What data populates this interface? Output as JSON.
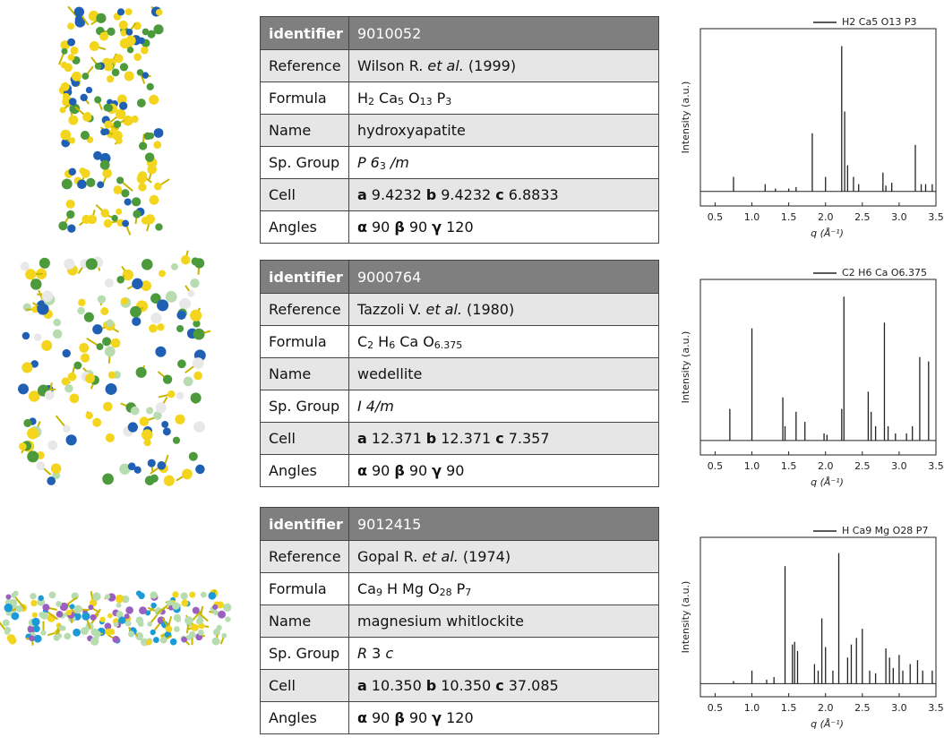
{
  "tables": [
    {
      "header": [
        "identifier",
        "9010052"
      ],
      "rows": [
        {
          "label": "Reference",
          "runs": [
            {
              "text": "Wilson R."
            },
            {
              "text": "et al.",
              "style": "i"
            },
            {
              "text": "(1999)"
            }
          ]
        },
        {
          "label": "Formula",
          "runs": [
            {
              "text": "H"
            },
            {
              "text": "2",
              "style": "sub"
            },
            {
              "text": "Ca"
            },
            {
              "text": "5",
              "style": "sub"
            },
            {
              "text": "O"
            },
            {
              "text": "13",
              "style": "sub"
            },
            {
              "text": "P"
            },
            {
              "text": "3",
              "style": "sub"
            }
          ]
        },
        {
          "label": "Name",
          "runs": [
            {
              "text": "hydroxyapatite"
            }
          ]
        },
        {
          "label": "Sp. Group",
          "runs": [
            {
              "text": "P",
              "style": "i"
            },
            {
              "text": "6",
              "style": "i"
            },
            {
              "text": "3",
              "style": "sub"
            },
            {
              "text": "/m",
              "style": "i"
            }
          ]
        },
        {
          "label": "Cell",
          "runs": [
            {
              "text": "a",
              "style": "b"
            },
            {
              "text": "9.4232"
            },
            {
              "text": "b",
              "style": "b"
            },
            {
              "text": "9.4232"
            },
            {
              "text": "c",
              "style": "b"
            },
            {
              "text": "6.8833"
            }
          ]
        },
        {
          "label": "Angles",
          "runs": [
            {
              "text": "α",
              "style": "b"
            },
            {
              "text": "90"
            },
            {
              "text": "β",
              "style": "b"
            },
            {
              "text": "90"
            },
            {
              "text": "γ",
              "style": "b"
            },
            {
              "text": "120"
            }
          ]
        }
      ]
    },
    {
      "header": [
        "identifier",
        "9000764"
      ],
      "rows": [
        {
          "label": "Reference",
          "runs": [
            {
              "text": "Tazzoli V."
            },
            {
              "text": "et al.",
              "style": "i"
            },
            {
              "text": "(1980)"
            }
          ]
        },
        {
          "label": "Formula",
          "runs": [
            {
              "text": "C"
            },
            {
              "text": "2",
              "style": "sub"
            },
            {
              "text": "H"
            },
            {
              "text": "6",
              "style": "sub"
            },
            {
              "text": "Ca"
            },
            {
              "text": "O"
            },
            {
              "text": "6.375",
              "style": "sub"
            }
          ]
        },
        {
          "label": "Name",
          "runs": [
            {
              "text": "wedellite"
            }
          ]
        },
        {
          "label": "Sp. Group",
          "runs": [
            {
              "text": "I",
              "style": "i"
            },
            {
              "text": "4/m",
              "style": "i"
            }
          ]
        },
        {
          "label": "Cell",
          "runs": [
            {
              "text": "a",
              "style": "b"
            },
            {
              "text": "12.371"
            },
            {
              "text": "b",
              "style": "b"
            },
            {
              "text": "12.371"
            },
            {
              "text": "c",
              "style": "b"
            },
            {
              "text": "7.357"
            }
          ]
        },
        {
          "label": "Angles",
          "runs": [
            {
              "text": "α",
              "style": "b"
            },
            {
              "text": "90"
            },
            {
              "text": "β",
              "style": "b"
            },
            {
              "text": "90"
            },
            {
              "text": "γ",
              "style": "b"
            },
            {
              "text": "90"
            }
          ]
        }
      ]
    },
    {
      "header": [
        "identifier",
        "9012415"
      ],
      "rows": [
        {
          "label": "Reference",
          "runs": [
            {
              "text": "Gopal R."
            },
            {
              "text": "et al.",
              "style": "i"
            },
            {
              "text": "(1974)"
            }
          ]
        },
        {
          "label": "Formula",
          "runs": [
            {
              "text": "Ca"
            },
            {
              "text": "9",
              "style": "sub"
            },
            {
              "text": "H"
            },
            {
              "text": "Mg"
            },
            {
              "text": "O"
            },
            {
              "text": "28",
              "style": "sub"
            },
            {
              "text": "P"
            },
            {
              "text": "7",
              "style": "sub"
            }
          ]
        },
        {
          "label": "Name",
          "runs": [
            {
              "text": "magnesium whitlockite"
            }
          ]
        },
        {
          "label": "Sp. Group",
          "runs": [
            {
              "text": "R",
              "style": "i"
            },
            {
              "text": "3"
            },
            {
              "text": "c",
              "style": "i"
            }
          ]
        },
        {
          "label": "Cell",
          "runs": [
            {
              "text": "a",
              "style": "b"
            },
            {
              "text": "10.350"
            },
            {
              "text": "b",
              "style": "b"
            },
            {
              "text": "10.350"
            },
            {
              "text": "c",
              "style": "b"
            },
            {
              "text": "37.085"
            }
          ]
        },
        {
          "label": "Angles",
          "runs": [
            {
              "text": "α",
              "style": "b"
            },
            {
              "text": "90"
            },
            {
              "text": "β",
              "style": "b"
            },
            {
              "text": "90"
            },
            {
              "text": "γ",
              "style": "b"
            },
            {
              "text": "120"
            }
          ]
        }
      ]
    }
  ],
  "chart_data": [
    {
      "type": "stem",
      "xlabel": "q (Å⁻¹)",
      "ylabel": "Intensity (a.u.)",
      "xlim": [
        0.3,
        3.5
      ],
      "ylim": [
        -0.1,
        1.12
      ],
      "xticks": [
        0.5,
        {
          "value": 1,
          "label": "1.0"
        },
        1.5,
        {
          "value": 2,
          "label": "2.0"
        },
        2.5,
        {
          "value": 3,
          "label": "3.0"
        },
        3.5
      ],
      "x": [
        0.75,
        1.18,
        1.32,
        1.5,
        1.6,
        1.82,
        2.0,
        2.22,
        2.26,
        2.3,
        2.38,
        2.45,
        2.78,
        2.82,
        2.9,
        3.22,
        3.3,
        3.36,
        3.45
      ],
      "series": [
        {
          "name": "H2 Ca5 O13 P3",
          "color": "#222222",
          "values": [
            0.1,
            0.05,
            0.02,
            0.02,
            0.03,
            0.4,
            0.1,
            1.0,
            0.55,
            0.18,
            0.1,
            0.05,
            0.13,
            0.04,
            0.06,
            0.32,
            0.05,
            0.05,
            0.05
          ]
        }
      ]
    },
    {
      "type": "stem",
      "xlabel": "q (Å⁻¹)",
      "ylabel": "Intensity (a.u.)",
      "xlim": [
        0.3,
        3.5
      ],
      "ylim": [
        -0.1,
        1.12
      ],
      "xticks": [
        0.5,
        {
          "value": 1,
          "label": "1.0"
        },
        1.5,
        {
          "value": 2,
          "label": "2.0"
        },
        2.5,
        {
          "value": 3,
          "label": "3.0"
        },
        3.5
      ],
      "x": [
        0.7,
        1.0,
        1.42,
        1.45,
        1.6,
        1.72,
        1.98,
        2.02,
        2.22,
        2.25,
        2.58,
        2.62,
        2.68,
        2.8,
        2.85,
        2.95,
        3.1,
        3.18,
        3.28,
        3.4
      ],
      "series": [
        {
          "name": "C2 H6 Ca O6.375",
          "color": "#222222",
          "values": [
            0.22,
            0.78,
            0.3,
            0.1,
            0.2,
            0.13,
            0.05,
            0.04,
            0.22,
            1.0,
            0.34,
            0.2,
            0.1,
            0.82,
            0.1,
            0.05,
            0.05,
            0.1,
            0.58,
            0.55
          ]
        }
      ]
    },
    {
      "type": "stem",
      "xlabel": "q (Å⁻¹)",
      "ylabel": "Intensity (a.u.)",
      "xlim": [
        0.3,
        3.5
      ],
      "ylim": [
        -0.1,
        1.12
      ],
      "xticks": [
        0.5,
        {
          "value": 1,
          "label": "1.0"
        },
        1.5,
        {
          "value": 2,
          "label": "2.0"
        },
        2.5,
        {
          "value": 3,
          "label": "3.0"
        },
        3.5
      ],
      "x": [
        0.75,
        1.0,
        1.2,
        1.3,
        1.45,
        1.55,
        1.58,
        1.62,
        1.85,
        1.9,
        1.95,
        2.0,
        2.1,
        2.18,
        2.3,
        2.35,
        2.42,
        2.5,
        2.6,
        2.68,
        2.82,
        2.87,
        2.92,
        3.0,
        3.05,
        3.15,
        3.25,
        3.32,
        3.45
      ],
      "series": [
        {
          "name": "H Ca9 Mg O28 P7",
          "color": "#222222",
          "values": [
            0.02,
            0.1,
            0.03,
            0.05,
            0.9,
            0.3,
            0.32,
            0.25,
            0.15,
            0.1,
            0.5,
            0.28,
            0.1,
            1.0,
            0.2,
            0.3,
            0.35,
            0.42,
            0.1,
            0.08,
            0.27,
            0.2,
            0.12,
            0.22,
            0.1,
            0.15,
            0.18,
            0.1,
            0.1
          ]
        }
      ]
    }
  ]
}
